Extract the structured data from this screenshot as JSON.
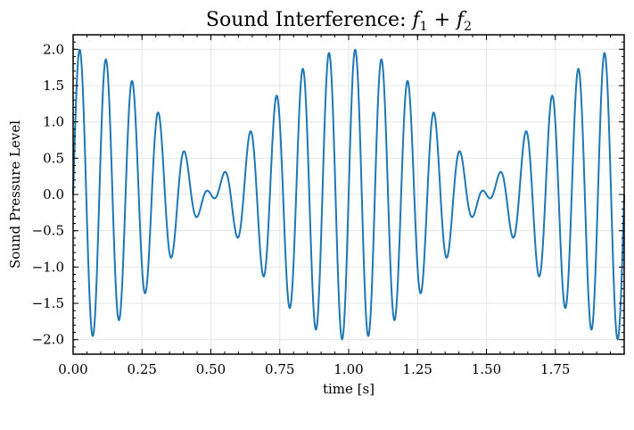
{
  "chart_data": {
    "type": "line",
    "title_text": "Sound Interference: ",
    "title_math": "f",
    "title_sub1": "1",
    "title_plus": " + ",
    "title_math2": "f",
    "title_sub2": "2",
    "xlabel": "time [s]",
    "ylabel": "Sound Pressure Level",
    "xlim": [
      0,
      2.0
    ],
    "ylim": [
      -2.2,
      2.2
    ],
    "x_ticks": [
      0,
      0.25,
      0.5,
      0.75,
      1.0,
      1.25,
      1.5,
      1.75
    ],
    "x_tick_labels": [
      "0.00",
      "0.25",
      "0.50",
      "0.75",
      "1.00",
      "1.25",
      "1.50",
      "1.75"
    ],
    "y_ticks": [
      2.0,
      1.5,
      1.0,
      0.5,
      0.0,
      -0.5,
      -1.0,
      -1.5,
      -2.0
    ],
    "y_tick_labels": [
      "2.0",
      "1.5",
      "1.0",
      "0.5",
      "0.0",
      "−0.5",
      "−1.0",
      "−1.5",
      "−2.0"
    ],
    "grid": true,
    "series": [
      {
        "signal": "sin(2π·10·t) + sin(2π·11·t)",
        "f1_hz": 10,
        "f2_hz": 11,
        "t_start": 0,
        "t_end": 2.0,
        "color": "#1f77b4"
      }
    ]
  }
}
